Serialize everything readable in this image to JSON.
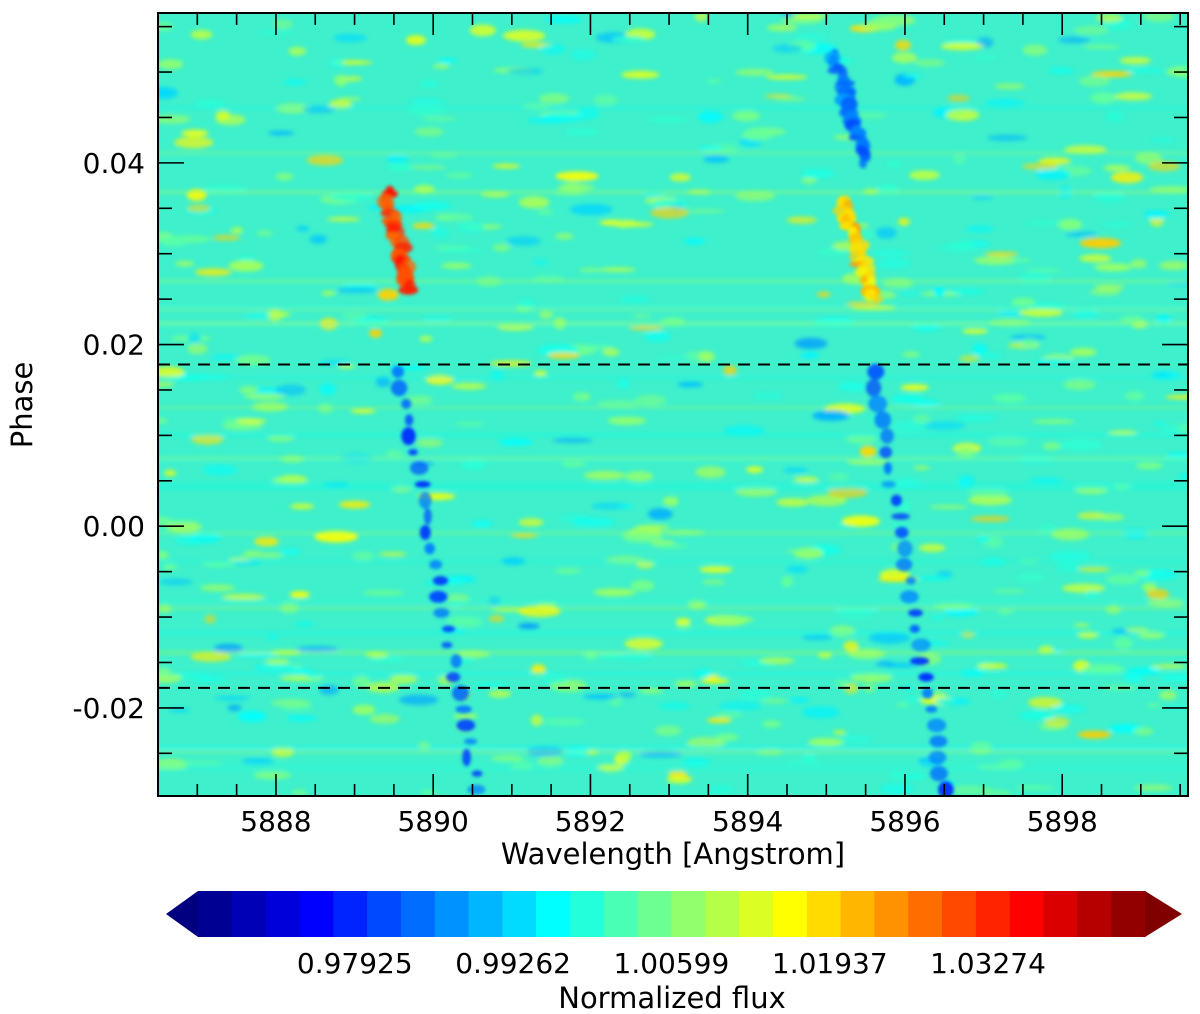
{
  "chart_data": {
    "type": "heatmap",
    "title": "",
    "xlabel": "Wavelength [Angstrom]",
    "ylabel": "Phase",
    "xlim": [
      5886.5,
      5899.6
    ],
    "ylim": [
      -0.0297,
      0.0565
    ],
    "x_ticks": [
      5888,
      5890,
      5892,
      5894,
      5896,
      5898
    ],
    "x_tick_labels": [
      "5888",
      "5890",
      "5892",
      "5894",
      "5896",
      "5898"
    ],
    "y_ticks": [
      -0.02,
      0.0,
      0.02,
      0.04
    ],
    "y_tick_labels": [
      "-0.02",
      "0.00",
      "0.02",
      "0.04"
    ],
    "grid": false,
    "colormap": "jet",
    "colorbar": {
      "label": "Normalized flux",
      "orientation": "horizontal",
      "range": [
        0.966,
        1.046
      ],
      "n_levels": 28,
      "extend": "both",
      "ticks": [
        0.97925,
        0.99262,
        1.00599,
        1.01937,
        1.03274
      ],
      "tick_labels": [
        "0.97925",
        "0.99262",
        "1.00599",
        "1.01937",
        "1.03274"
      ]
    },
    "reference_lines": [
      {
        "orientation": "horizontal",
        "style": "dashed",
        "y": 0.0178
      },
      {
        "orientation": "horizontal",
        "style": "dashed",
        "y": -0.0178
      }
    ],
    "features": [
      {
        "name": "Na D2 absorption track",
        "x_start": 5889.55,
        "x_end": 5890.55,
        "y_start": 0.017,
        "y_end": -0.029,
        "value": 0.982
      },
      {
        "name": "Na D1 absorption track",
        "x_start": 5895.6,
        "x_end": 5896.5,
        "y_start": 0.017,
        "y_end": -0.029,
        "value": 0.982
      },
      {
        "name": "D2 emission residual",
        "x_start": 5889.4,
        "x_end": 5889.7,
        "y_start": 0.037,
        "y_end": 0.026,
        "value": 1.03
      },
      {
        "name": "D1 emission residual",
        "x_start": 5895.2,
        "x_end": 5895.6,
        "y_start": 0.036,
        "y_end": 0.025,
        "value": 1.018
      },
      {
        "name": "D1 pre-transit absorption",
        "x_start": 5895.1,
        "x_end": 5895.5,
        "y_start": 0.052,
        "y_end": 0.04,
        "value": 0.984
      }
    ]
  }
}
